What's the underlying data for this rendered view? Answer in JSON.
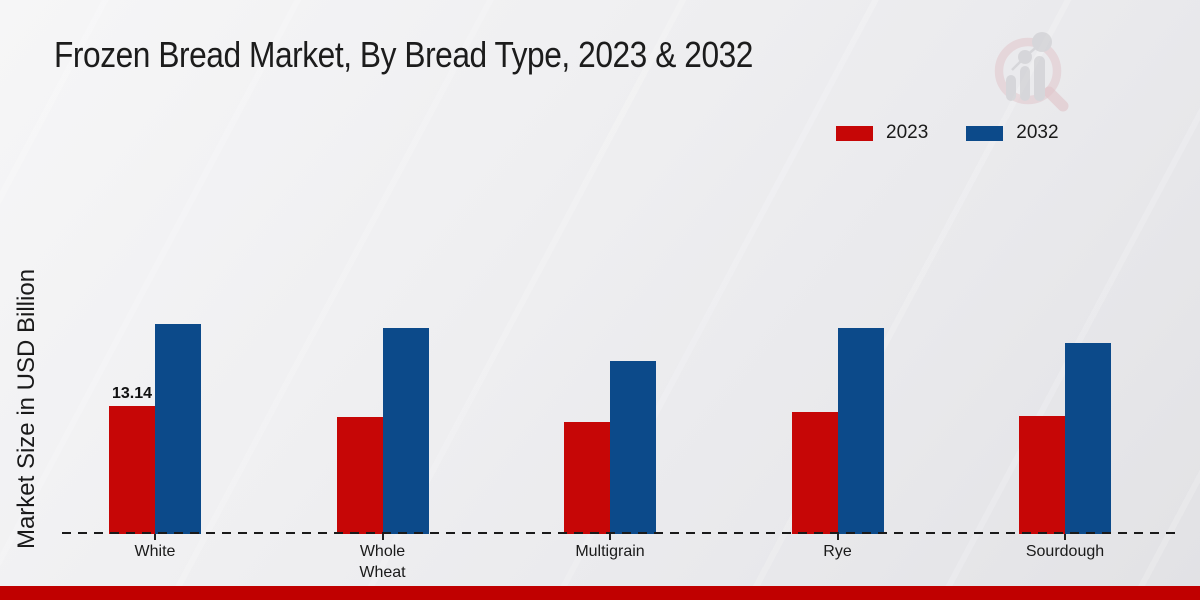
{
  "page": {
    "background_top": "#f6f6f7",
    "background_bottom": "#e2e2e5",
    "bottom_bar_color": "#c00000",
    "watermark_icon": "magnifier-growth-chart-logo"
  },
  "chart_data": {
    "type": "bar",
    "title": "Frozen Bread Market, By Bread Type, 2023 & 2032",
    "xlabel": "",
    "ylabel": "Market Size in USD Billion",
    "categories": [
      "White",
      "Whole Wheat",
      "Multigrain",
      "Rye",
      "Sourdough"
    ],
    "series": [
      {
        "name": "2023",
        "color": "#c60606",
        "values": [
          13.14,
          12.1,
          11.5,
          12.6,
          12.2
        ]
      },
      {
        "name": "2032",
        "color": "#0c4a8a",
        "values": [
          21.6,
          21.2,
          17.8,
          21.2,
          19.7
        ]
      }
    ],
    "data_labels": [
      {
        "series": "2023",
        "category": "White",
        "text": "13.14"
      }
    ],
    "ylim": [
      0,
      24
    ],
    "grid": false,
    "legend_position": "top-right",
    "axis_line_style": "dashed"
  }
}
